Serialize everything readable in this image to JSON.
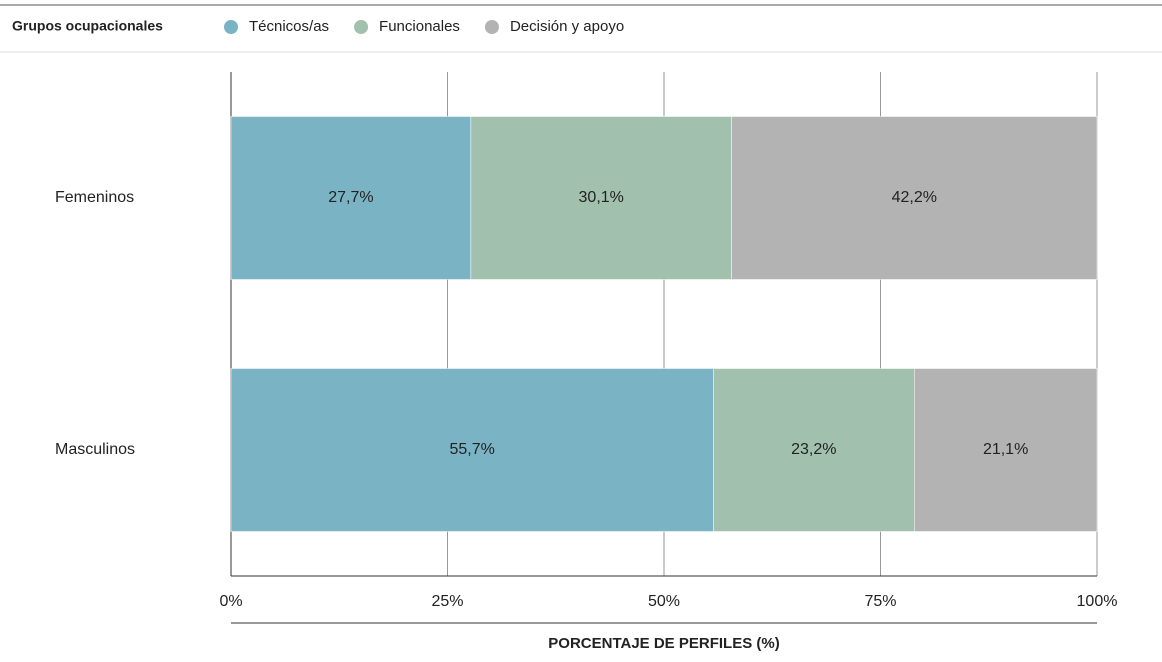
{
  "chart_data": {
    "type": "stacked-bar-horizontal",
    "legend_title": "Grupos ocupacionales",
    "categories": [
      "Femeninos",
      "Masculinos"
    ],
    "series": [
      {
        "name": "Técnicos/as",
        "color": "#7ab4c4",
        "values": [
          27.7,
          55.7
        ],
        "value_labels": [
          "27,7%",
          "55,7%"
        ]
      },
      {
        "name": "Funcionales",
        "color": "#a1c1ae",
        "values": [
          30.1,
          23.2
        ],
        "value_labels": [
          "30,1%",
          "23,2%"
        ]
      },
      {
        "name": "Decisión y apoyo",
        "color": "#b3b3b3",
        "values": [
          42.2,
          21.1
        ],
        "value_labels": [
          "42,2%",
          "21,1%"
        ]
      }
    ],
    "xlim": [
      0,
      100
    ],
    "xticks": [
      {
        "value": 0,
        "label": "0%"
      },
      {
        "value": 25,
        "label": "25%"
      },
      {
        "value": 50,
        "label": "50%"
      },
      {
        "value": 75,
        "label": "75%"
      },
      {
        "value": 100,
        "label": "100%"
      }
    ],
    "x_label": "PORCENTAJE DE PERFILES (%)",
    "grid": true
  }
}
